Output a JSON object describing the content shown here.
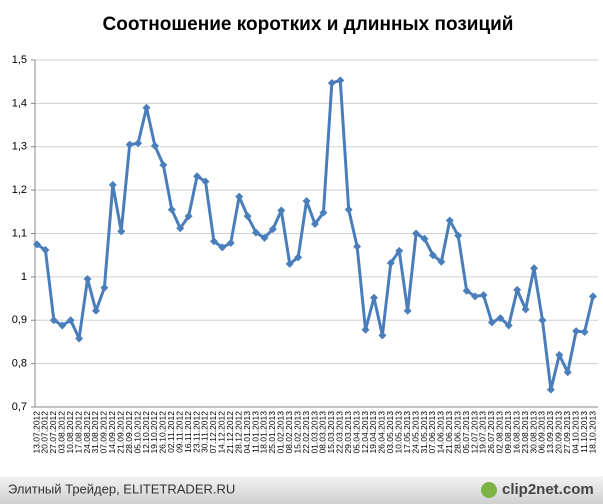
{
  "chart_data": {
    "type": "line",
    "title": "Соотношение коротких и длинных позиций",
    "categories": [
      "13.07.2012",
      "20.07.2012",
      "27.07.2012",
      "03.08.2012",
      "10.08.2012",
      "17.08.2012",
      "24.08.2012",
      "31.08.2012",
      "07.09.2012",
      "14.09.2012",
      "21.09.2012",
      "28.09.2012",
      "05.10.2012",
      "12.10.2012",
      "19.10.2012",
      "26.10.2012",
      "02.11.2012",
      "09.11.2012",
      "16.11.2012",
      "23.11.2012",
      "30.11.2012",
      "07.12.2012",
      "14.12.2012",
      "21.12.2012",
      "28.12.2012",
      "04.01.2013",
      "11.01.2013",
      "18.01.2013",
      "25.01.2013",
      "01.02.2013",
      "08.02.2013",
      "15.02.2013",
      "22.02.2013",
      "01.03.2013",
      "08.03.2013",
      "15.03.2013",
      "22.03.2013",
      "29.03.2013",
      "05.04.2013",
      "12.04.2013",
      "19.04.2013",
      "26.04.2013",
      "03.05.2013",
      "10.05.2013",
      "17.05.2013",
      "24.05.2013",
      "31.05.2013",
      "07.06.2013",
      "14.06.2013",
      "21.06.2013",
      "28.06.2013",
      "05.07.2013",
      "12.07.2013",
      "19.07.2013",
      "26.07.2013",
      "02.08.2013",
      "09.08.2013",
      "16.08.2013",
      "23.08.2013",
      "30.08.2013",
      "06.09.2013",
      "13.09.2013",
      "20.09.2013",
      "27.09.2013",
      "04.10.2013",
      "11.10.2013",
      "18.10.2013"
    ],
    "series": [
      {
        "color": "#4a7ebb",
        "values": [
          1.075,
          1.062,
          0.9,
          0.888,
          0.9,
          0.858,
          0.995,
          0.922,
          0.975,
          1.212,
          1.105,
          1.305,
          1.308,
          1.39,
          1.302,
          1.258,
          1.155,
          1.112,
          1.14,
          1.232,
          1.22,
          1.082,
          1.068,
          1.078,
          1.185,
          1.14,
          1.102,
          1.09,
          1.11,
          1.153,
          1.03,
          1.045,
          1.175,
          1.122,
          1.148,
          1.447,
          1.453,
          1.155,
          1.07,
          0.878,
          0.952,
          0.865,
          1.032,
          1.06,
          0.922,
          1.1,
          1.088,
          1.05,
          1.035,
          1.13,
          1.095,
          0.968,
          0.955,
          0.958,
          0.895,
          0.905,
          0.888,
          0.97,
          0.925,
          1.02,
          0.9,
          0.74,
          0.82,
          0.78,
          0.875,
          0.873,
          0.955
        ]
      }
    ],
    "ylim": [
      0.7,
      1.5
    ],
    "yticks": [
      {
        "value": 0.7,
        "label": "0,7"
      },
      {
        "value": 0.8,
        "label": "0,8"
      },
      {
        "value": 0.9,
        "label": "0,9"
      },
      1,
      {
        "value": 1.1,
        "label": "1,1"
      },
      {
        "value": 1.2,
        "label": "1,2"
      },
      {
        "value": 1.3,
        "label": "1,3"
      },
      {
        "value": 1.4,
        "label": "1,4"
      },
      {
        "value": 1.5,
        "label": "1,5"
      }
    ],
    "grid": true
  },
  "footer": {
    "source": "Элитный Трейдер, ELITETRADER.RU",
    "logo": "clip2net.com"
  }
}
